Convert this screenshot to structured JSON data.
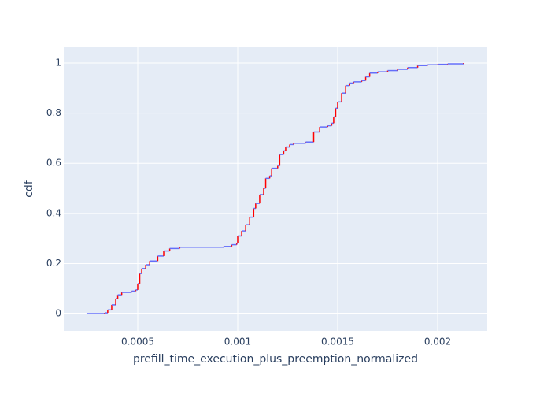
{
  "chart_data": {
    "type": "step",
    "xlabel": "prefill_time_execution_plus_preemption_normalized",
    "ylabel": "cdf",
    "horizontal_color": "#636efa",
    "vertical_color": "#ff0000",
    "grid": true,
    "xlim": [
      0.00013,
      0.002248
    ],
    "ylim": [
      -0.069,
      1.063
    ],
    "xticks": [
      0.0005,
      0.001,
      0.0015,
      0.002
    ],
    "yticks": [
      0,
      0.2,
      0.4,
      0.6,
      0.8,
      1
    ],
    "x": [
      0.000244,
      0.000335,
      0.00035,
      0.00037,
      0.00039,
      0.0004,
      0.00042,
      0.00047,
      0.00049,
      0.0005,
      0.00051,
      0.00052,
      0.00054,
      0.00056,
      0.0006,
      0.00063,
      0.00066,
      0.00071,
      0.00093,
      0.00097,
      0.000995,
      0.001,
      0.00102,
      0.00104,
      0.00106,
      0.00108,
      0.00109,
      0.00111,
      0.00113,
      0.00114,
      0.00116,
      0.00117,
      0.0012,
      0.00121,
      0.00123,
      0.00124,
      0.00126,
      0.00128,
      0.00134,
      0.00138,
      0.00141,
      0.00145,
      0.00147,
      0.00148,
      0.00149,
      0.0015,
      0.00152,
      0.00154,
      0.00156,
      0.00158,
      0.00162,
      0.00164,
      0.00166,
      0.0017,
      0.00175,
      0.0018,
      0.00185,
      0.0019,
      0.00195,
      0.002,
      0.00205,
      0.00213
    ],
    "values": [
      0,
      0.003,
      0.015,
      0.035,
      0.06,
      0.075,
      0.085,
      0.09,
      0.095,
      0.12,
      0.16,
      0.18,
      0.195,
      0.21,
      0.23,
      0.25,
      0.26,
      0.265,
      0.268,
      0.275,
      0.28,
      0.31,
      0.33,
      0.355,
      0.385,
      0.42,
      0.44,
      0.475,
      0.5,
      0.54,
      0.55,
      0.58,
      0.59,
      0.635,
      0.65,
      0.665,
      0.675,
      0.68,
      0.685,
      0.725,
      0.745,
      0.75,
      0.76,
      0.785,
      0.82,
      0.845,
      0.88,
      0.91,
      0.92,
      0.925,
      0.93,
      0.945,
      0.96,
      0.965,
      0.97,
      0.975,
      0.982,
      0.99,
      0.993,
      0.995,
      0.997,
      1
    ]
  }
}
